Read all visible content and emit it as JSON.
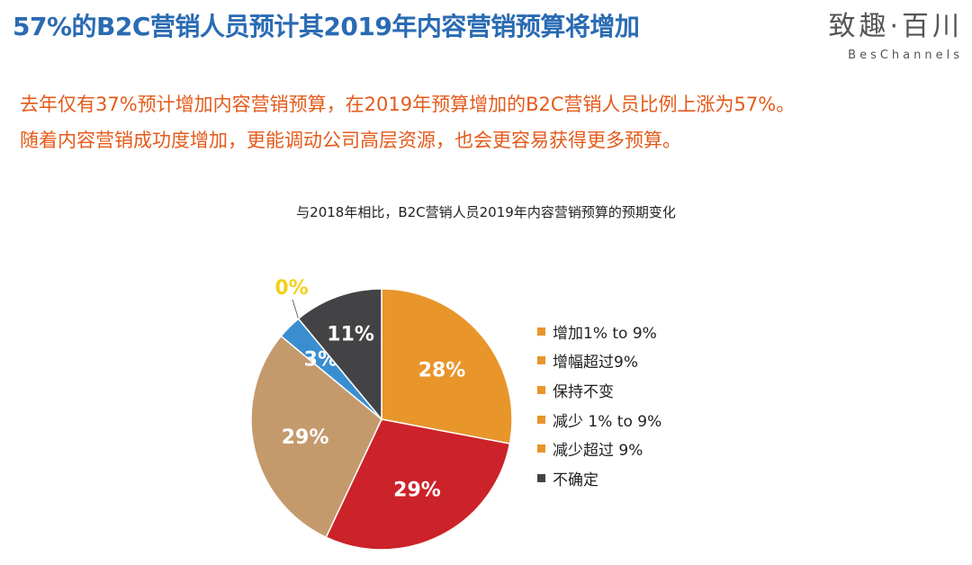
{
  "headline": "57%的B2C营销人员预计其2019年内容营销预算将增加",
  "brand": {
    "cn": "致趣·百川",
    "en": "BesChannels"
  },
  "summary": [
    "去年仅有37%预计增加内容营销预算，在2019年预算增加的B2C营销人员比例上涨为57%。",
    "随着内容营销成功度增加，更能调动公司高层资源，也会更容易获得更多预算。"
  ],
  "chart_data": {
    "type": "pie",
    "title": "与2018年相比，B2C营销人员2019年内容营销预算的预期变化",
    "legend_position": "right",
    "categories": [
      "增加1% to 9%",
      "增幅超过9%",
      "保持不变",
      "减少 1% to 9%",
      "减少超过 9%",
      "不确定"
    ],
    "values": [
      28,
      29,
      29,
      3,
      0,
      11
    ],
    "labels": [
      "28%",
      "29%",
      "29%",
      "3%",
      "0%",
      "11%"
    ],
    "colors": [
      "#e8952a",
      "#cc2229",
      "#c49a6c",
      "#3a8ed0",
      "#f2d01c",
      "#434346"
    ],
    "legend_swatch_colors": [
      "#e8952a",
      "#e8952a",
      "#e8952a",
      "#e8952a",
      "#e8952a",
      "#434346"
    ]
  }
}
